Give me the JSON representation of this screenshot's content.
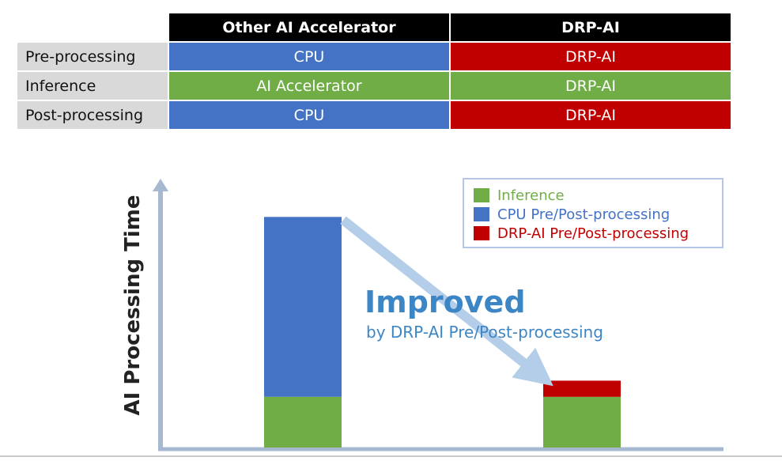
{
  "table": {
    "headers": [
      "",
      "Other AI Accelerator",
      "DRP-AI"
    ],
    "rows": [
      {
        "label": "Pre-processing",
        "other": "CPU",
        "drp": "DRP-AI"
      },
      {
        "label": "Inference",
        "other": "AI Accelerator",
        "drp": "DRP-AI"
      },
      {
        "label": "Post-processing",
        "other": "CPU",
        "drp": "DRP-AI"
      }
    ]
  },
  "annotation": {
    "headline": "Improved",
    "subline": "by DRP-AI Pre/Post-processing"
  },
  "colors": {
    "inference": "#70ad47",
    "cpu": "#4472c4",
    "drp": "#c00000",
    "arrow": "#b4cde8",
    "axis": "#a7b9d0"
  },
  "chart_data": {
    "type": "bar",
    "stacked": true,
    "title": "",
    "xlabel": "",
    "ylabel": "AI Processing Time",
    "categories": [
      "",
      ""
    ],
    "series": [
      {
        "name": "Inference",
        "values": [
          22,
          22
        ]
      },
      {
        "name": "CPU Pre/Post-processing",
        "values": [
          78,
          0
        ]
      },
      {
        "name": "DRP-AI Pre/Post-processing",
        "values": [
          0,
          7
        ]
      }
    ],
    "ylim": [
      0,
      120
    ],
    "grid": false,
    "legend_position": "top-right"
  }
}
